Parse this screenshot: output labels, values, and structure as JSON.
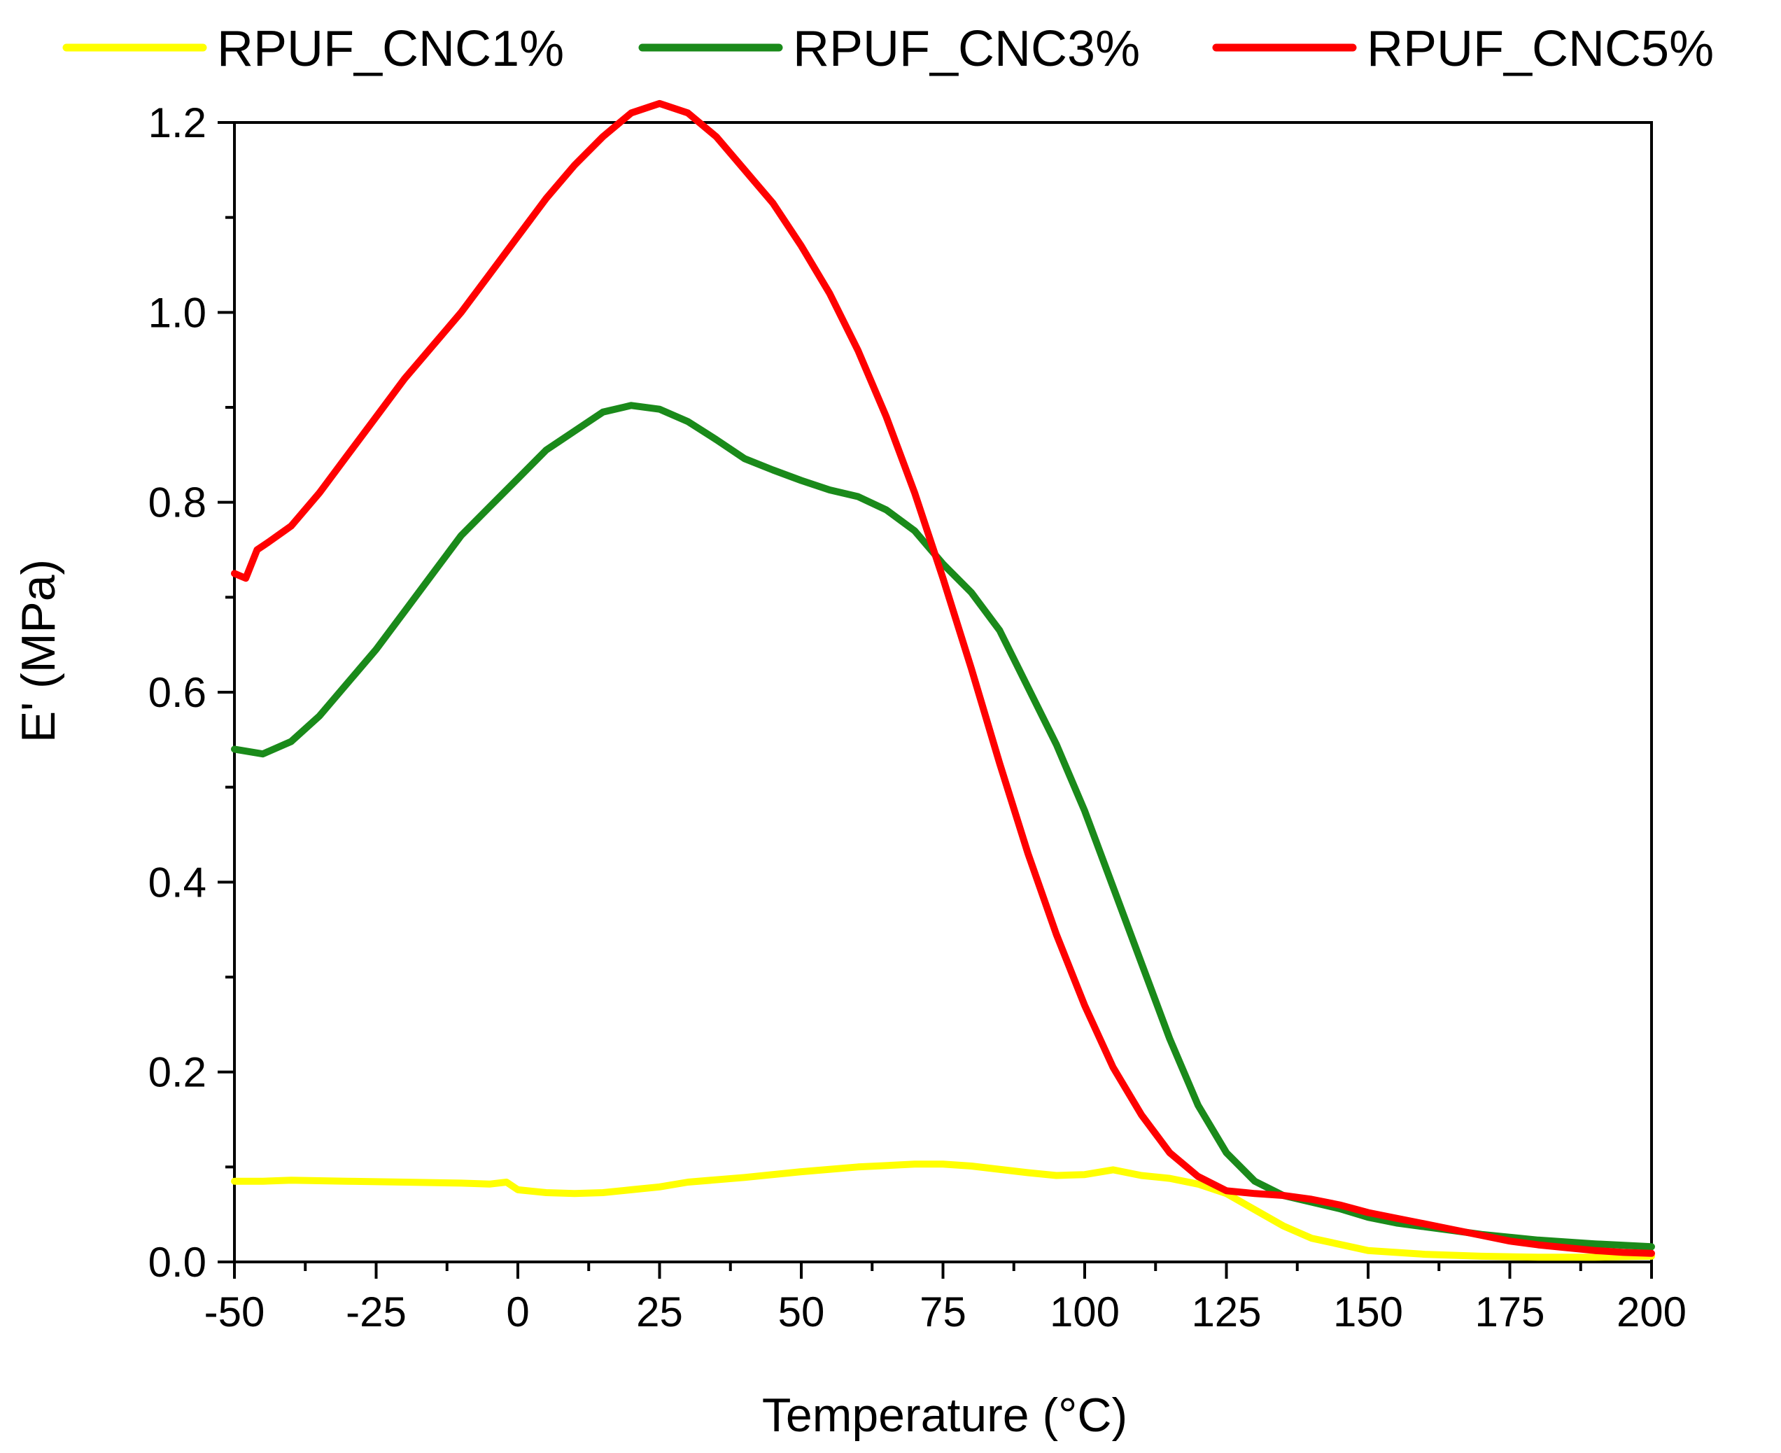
{
  "chart_data": {
    "type": "line",
    "title": "",
    "xlabel": "Temperature (°C)",
    "ylabel": "E' (MPa)",
    "xlim": [
      -50,
      200
    ],
    "ylim": [
      0.0,
      1.2
    ],
    "x_ticks": [
      -50,
      -25,
      0,
      25,
      50,
      75,
      100,
      125,
      150,
      175,
      200
    ],
    "x_tick_labels": [
      "-50",
      "-25",
      "0",
      "25",
      "50",
      "75",
      "100",
      "125",
      "150",
      "175",
      "200"
    ],
    "y_ticks": [
      0.0,
      0.2,
      0.4,
      0.6,
      0.8,
      1.0,
      1.2
    ],
    "y_tick_labels": [
      "0.0",
      "0.2",
      "0.4",
      "0.6",
      "0.8",
      "1.0",
      "1.2"
    ],
    "grid": false,
    "legend_position": "top",
    "series": [
      {
        "name": "RPUF_CNC1%",
        "color": "#ffff00",
        "x": [
          -50,
          -45,
          -40,
          -30,
          -20,
          -10,
          -5,
          -2,
          0,
          5,
          10,
          15,
          20,
          25,
          30,
          40,
          50,
          60,
          70,
          75,
          80,
          90,
          95,
          100,
          105,
          110,
          115,
          120,
          125,
          130,
          135,
          140,
          150,
          160,
          170,
          180,
          190,
          200
        ],
        "y": [
          0.085,
          0.085,
          0.086,
          0.085,
          0.084,
          0.083,
          0.082,
          0.084,
          0.076,
          0.073,
          0.072,
          0.073,
          0.076,
          0.079,
          0.084,
          0.089,
          0.095,
          0.1,
          0.103,
          0.103,
          0.101,
          0.094,
          0.091,
          0.092,
          0.097,
          0.091,
          0.088,
          0.082,
          0.072,
          0.055,
          0.038,
          0.025,
          0.012,
          0.008,
          0.006,
          0.005,
          0.005,
          0.006
        ]
      },
      {
        "name": "RPUF_CNC3%",
        "color": "#1a8a1a",
        "x": [
          -50,
          -45,
          -40,
          -35,
          -30,
          -25,
          -20,
          -15,
          -10,
          -5,
          0,
          5,
          10,
          15,
          20,
          25,
          30,
          35,
          40,
          45,
          50,
          55,
          60,
          65,
          70,
          75,
          80,
          85,
          90,
          95,
          100,
          105,
          110,
          115,
          120,
          125,
          130,
          135,
          140,
          145,
          150,
          155,
          160,
          165,
          170,
          180,
          190,
          200
        ],
        "y": [
          0.54,
          0.535,
          0.548,
          0.575,
          0.61,
          0.645,
          0.685,
          0.725,
          0.765,
          0.795,
          0.825,
          0.855,
          0.875,
          0.895,
          0.902,
          0.898,
          0.885,
          0.866,
          0.846,
          0.834,
          0.823,
          0.813,
          0.806,
          0.792,
          0.77,
          0.735,
          0.705,
          0.665,
          0.605,
          0.545,
          0.475,
          0.395,
          0.315,
          0.235,
          0.165,
          0.115,
          0.085,
          0.07,
          0.063,
          0.056,
          0.047,
          0.041,
          0.037,
          0.033,
          0.029,
          0.023,
          0.019,
          0.016
        ]
      },
      {
        "name": "RPUF_CNC5%",
        "color": "#ff0000",
        "x": [
          -50,
          -48,
          -46,
          -44,
          -40,
          -35,
          -30,
          -25,
          -20,
          -15,
          -10,
          -5,
          0,
          5,
          10,
          15,
          20,
          25,
          30,
          35,
          40,
          45,
          50,
          55,
          60,
          65,
          70,
          75,
          80,
          85,
          90,
          95,
          100,
          105,
          110,
          115,
          120,
          125,
          130,
          135,
          140,
          145,
          150,
          155,
          160,
          165,
          170,
          175,
          180,
          185,
          190,
          195,
          200
        ],
        "y": [
          0.725,
          0.72,
          0.75,
          0.758,
          0.775,
          0.81,
          0.85,
          0.89,
          0.93,
          0.965,
          1.0,
          1.04,
          1.08,
          1.12,
          1.155,
          1.185,
          1.21,
          1.22,
          1.21,
          1.185,
          1.15,
          1.115,
          1.07,
          1.02,
          0.96,
          0.89,
          0.81,
          0.72,
          0.625,
          0.525,
          0.43,
          0.345,
          0.27,
          0.205,
          0.155,
          0.115,
          0.09,
          0.075,
          0.072,
          0.07,
          0.066,
          0.06,
          0.052,
          0.046,
          0.04,
          0.034,
          0.028,
          0.022,
          0.018,
          0.015,
          0.012,
          0.01,
          0.009
        ]
      }
    ]
  }
}
